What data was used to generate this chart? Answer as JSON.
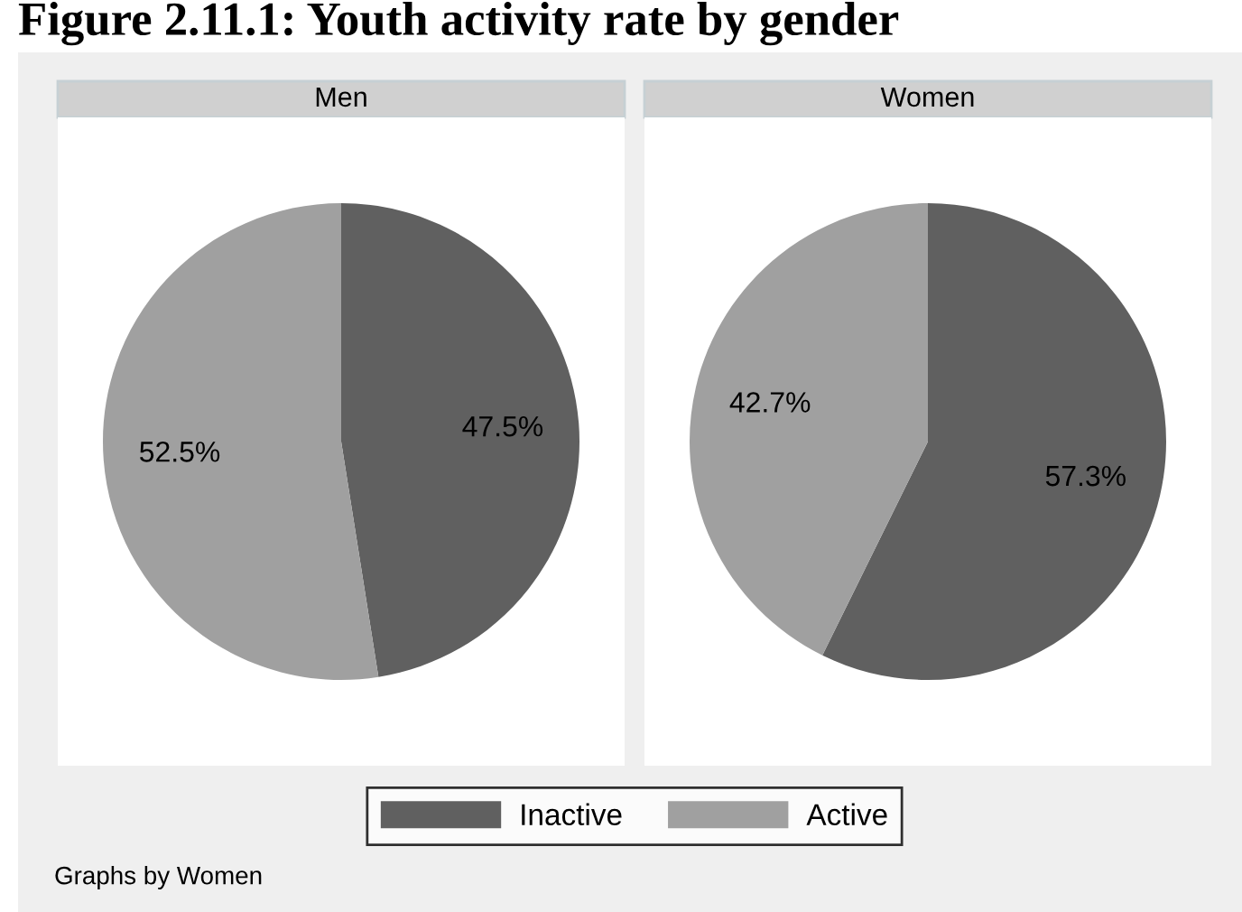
{
  "chart_data": [
    {
      "type": "pie",
      "title": "Men",
      "categories": [
        "Inactive",
        "Active"
      ],
      "values": [
        47.5,
        52.5
      ],
      "colors": [
        "#606060",
        "#a0a0a0"
      ],
      "value_labels": [
        "47.5%",
        "52.5%"
      ],
      "legend": "bottom",
      "annotations": [
        "Figure 2.11.1: Youth activity rate by gender",
        "Graphs by Women"
      ]
    },
    {
      "type": "pie",
      "title": "Women",
      "categories": [
        null,
        null
      ],
      "values": [
        57.3,
        42.7
      ],
      "colors": [
        "#606060",
        "#a0a0a0"
      ],
      "value_labels": [
        "57.3%",
        "42.7%"
      ]
    }
  ]
}
